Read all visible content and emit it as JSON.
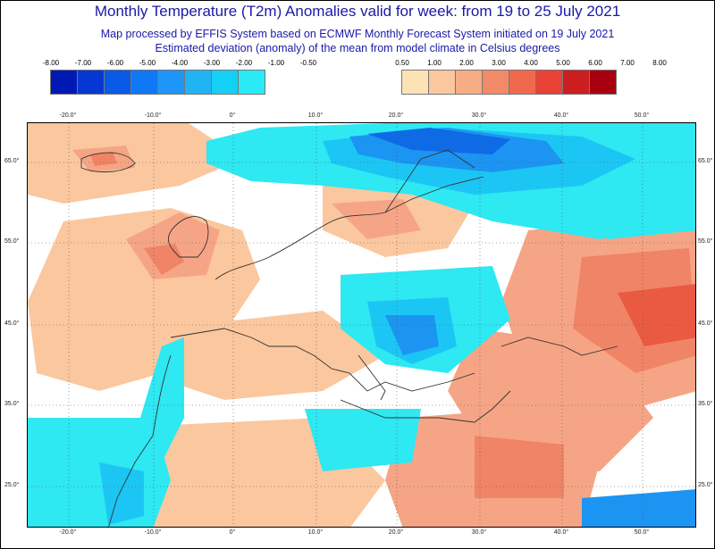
{
  "header": {
    "title": "Monthly Temperature (T2m) Anomalies valid for week: from 19 to 25 July 2021",
    "line2": "Map processed by EFFIS System based on ECMWF Monthly Forecast System initiated on 19 July 2021",
    "line3": "Estimated deviation (anomaly) of the mean from model climate in Celsius degrees"
  },
  "legend_cold": {
    "labels": [
      "-8.00",
      "-7.00",
      "-6.00",
      "-5.00",
      "-4.00",
      "-3.00",
      "-2.00",
      "-1.00",
      "-0.50"
    ],
    "colors": [
      "#0019b3",
      "#0538d2",
      "#0a5ae8",
      "#0f78f5",
      "#1e96f7",
      "#20b4f5",
      "#15d0f5",
      "#2aeaf5"
    ]
  },
  "legend_warm": {
    "labels": [
      "0.50",
      "1.00",
      "2.00",
      "3.00",
      "4.00",
      "5.00",
      "6.00",
      "7.00",
      "8.00"
    ],
    "colors": [
      "#fde2b6",
      "#fbc79e",
      "#f6ac84",
      "#f28a68",
      "#ef6a4d",
      "#ea4136",
      "#cc1e1e",
      "#a80010"
    ]
  },
  "axes": {
    "lon_labels": [
      "-20.0°",
      "-10.0°",
      "0°",
      "10.0°",
      "20.0°",
      "30.0°",
      "40.0°",
      "50.0°"
    ],
    "lat_labels": [
      "65.0°",
      "55.0°",
      "45.0°",
      "35.0°",
      "25.0°"
    ]
  },
  "map": {
    "colors": {
      "land_neutral": "#ffffff",
      "sea_neutral": "#ffffff",
      "cyan": "#2ee8f2",
      "light_blue": "#1cc6f4",
      "blue": "#1c94f2",
      "dark_blue": "#0f6ae6",
      "deep_blue": "#0a48d6",
      "peach": "#fbc79e",
      "salmon": "#f5a585",
      "orange": "#f08466",
      "red": "#ea5a42",
      "coast": "#333333",
      "grid": "#555555"
    }
  }
}
